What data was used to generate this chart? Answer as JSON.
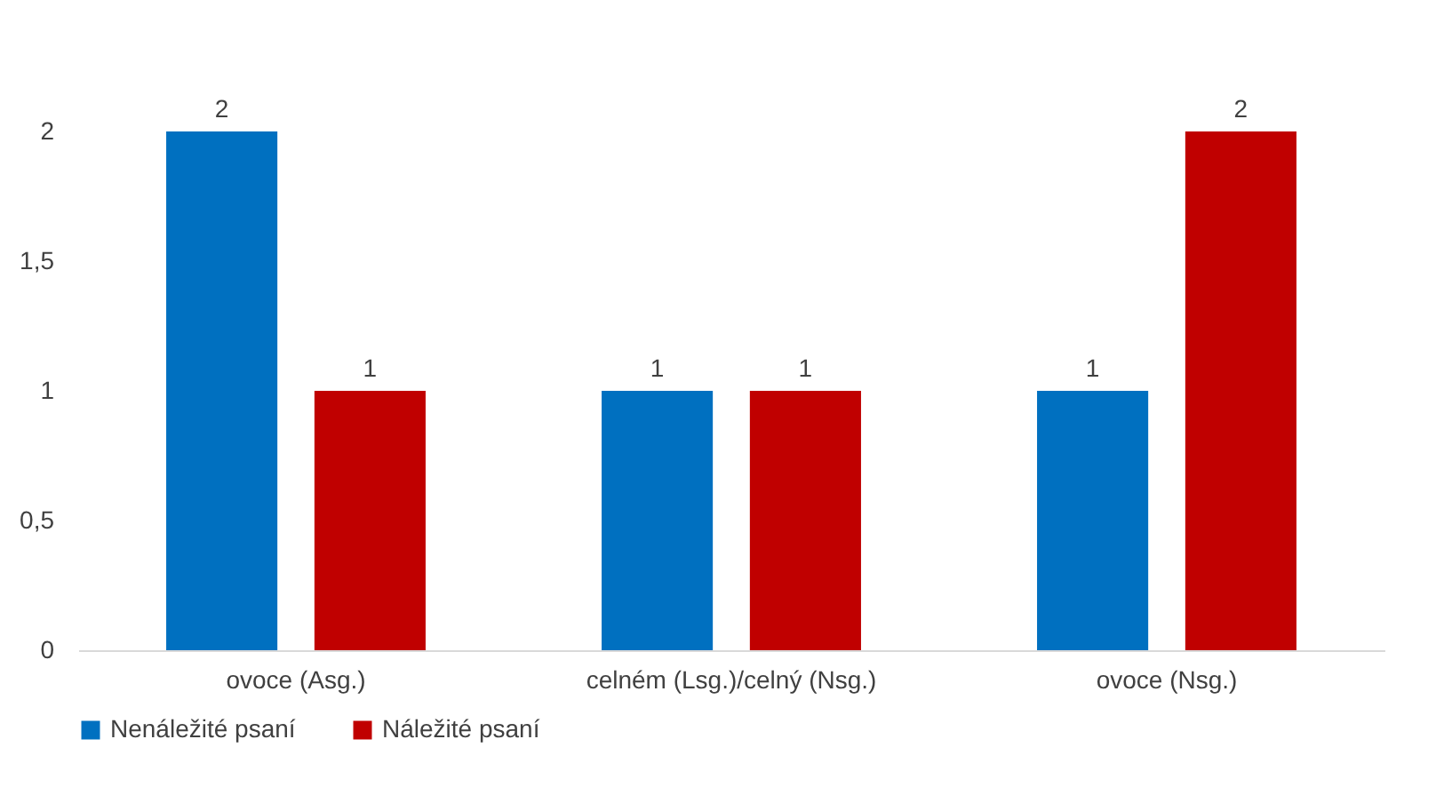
{
  "chart_data": {
    "type": "bar",
    "categories": [
      "ovoce (Asg.)",
      "celném (Lsg.)/celný (Nsg.)",
      "ovoce (Nsg.)"
    ],
    "series": [
      {
        "name": "Nenáležité psaní",
        "color": "#0070c0",
        "values": [
          2,
          1,
          1
        ]
      },
      {
        "name": "Náležité psaní",
        "color": "#c00000",
        "values": [
          1,
          1,
          2
        ]
      }
    ],
    "ylim": [
      0,
      2
    ],
    "yticks": [
      {
        "value": 0,
        "label": "0"
      },
      {
        "value": 0.5,
        "label": "0,5"
      },
      {
        "value": 1,
        "label": "1"
      },
      {
        "value": 1.5,
        "label": "1,5"
      },
      {
        "value": 2,
        "label": "2"
      }
    ],
    "data_labels": true,
    "grid": false,
    "legend": "bottom"
  }
}
